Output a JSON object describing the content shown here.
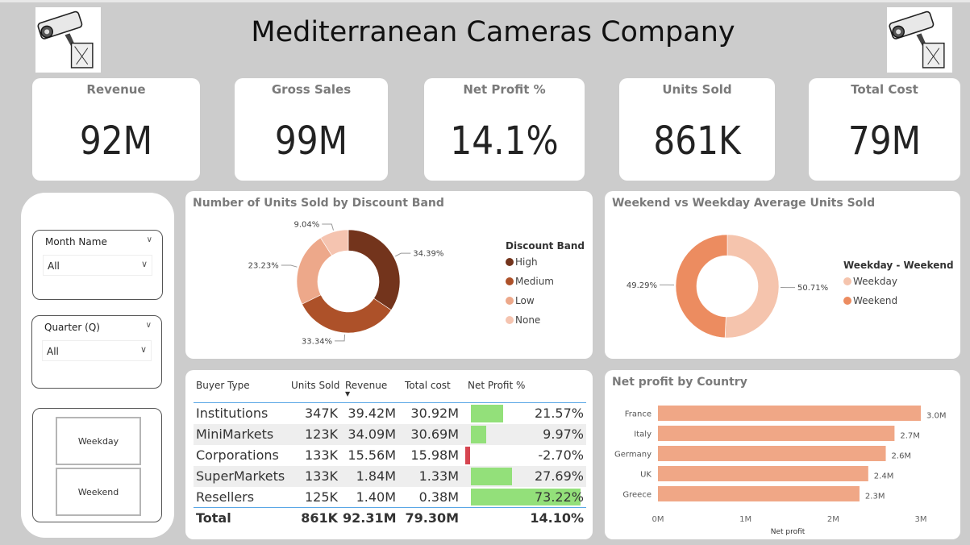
{
  "header": {
    "title": "Mediterranean Cameras Company",
    "logo_icon": "security-camera-icon"
  },
  "kpis": [
    {
      "label": "Revenue",
      "value": "92M"
    },
    {
      "label": "Gross Sales",
      "value": "99M"
    },
    {
      "label": "Net Profit %",
      "value": "14.1%"
    },
    {
      "label": "Units Sold",
      "value": "861K"
    },
    {
      "label": "Total Cost",
      "value": "79M"
    }
  ],
  "slicers": {
    "month": {
      "title": "Month Name",
      "value": "All"
    },
    "quarter": {
      "title": "Quarter (Q)",
      "value": "All"
    },
    "day_type": {
      "options": [
        "Weekday",
        "Weekend"
      ]
    }
  },
  "chart_data": [
    {
      "type": "pie",
      "title": "Number of Units Sold by Discount Band",
      "legend_title": "Discount Band",
      "legend_position": "right",
      "categories": [
        "High",
        "Medium",
        "Low",
        "None"
      ],
      "values": [
        34.39,
        33.34,
        23.23,
        9.04
      ],
      "labels": [
        "34.39%",
        "33.34%",
        "23.23%",
        "9.04%"
      ],
      "colors": [
        "#73341c",
        "#ad5129",
        "#eda88a",
        "#f5c4b0"
      ]
    },
    {
      "type": "pie",
      "title": "Weekend vs Weekday Average Units Sold",
      "legend_title": "Weekday - Weekend",
      "legend_position": "right",
      "categories": [
        "Weekday",
        "Weekend"
      ],
      "values": [
        50.71,
        49.29
      ],
      "labels": [
        "50.71%",
        "49.29%"
      ],
      "colors": [
        "#f5c4ad",
        "#ec8c60"
      ]
    },
    {
      "type": "bar",
      "orientation": "horizontal",
      "title": "Net profit by Country",
      "categories": [
        "France",
        "Italy",
        "Germany",
        "UK",
        "Greece"
      ],
      "values": [
        3.0,
        2.7,
        2.6,
        2.4,
        2.3
      ],
      "labels": [
        "3.0M",
        "2.7M",
        "2.6M",
        "2.4M",
        "2.3M"
      ],
      "xlabel": "Net profit",
      "xticks": [
        "0M",
        "1M",
        "2M",
        "3M"
      ],
      "xlim": [
        0,
        3
      ],
      "color": "#f0a786"
    },
    {
      "type": "table",
      "columns": [
        "Buyer Type",
        "Units Sold",
        "Revenue",
        "Total cost",
        "Net Profit %"
      ],
      "sort_column": "Revenue",
      "rows": [
        {
          "name": "Institutions",
          "units": "347K",
          "revenue": "39.42M",
          "cost": "30.92M",
          "np_label": "21.57%",
          "np": 21.57
        },
        {
          "name": "MiniMarkets",
          "units": "123K",
          "revenue": "34.09M",
          "cost": "30.69M",
          "np_label": "9.97%",
          "np": 9.97
        },
        {
          "name": "Corporations",
          "units": "133K",
          "revenue": "15.56M",
          "cost": "15.98M",
          "np_label": "-2.70%",
          "np": -2.7
        },
        {
          "name": "SuperMarkets",
          "units": "133K",
          "revenue": "1.84M",
          "cost": "1.33M",
          "np_label": "27.69%",
          "np": 27.69
        },
        {
          "name": "Resellers",
          "units": "125K",
          "revenue": "1.40M",
          "cost": "0.38M",
          "np_label": "73.22%",
          "np": 73.22
        }
      ],
      "total": {
        "name": "Total",
        "units": "861K",
        "revenue": "92.31M",
        "cost": "79.30M",
        "np_label": "14.10%"
      },
      "positive_color": "#93e07a",
      "negative_color": "#d64550"
    }
  ]
}
